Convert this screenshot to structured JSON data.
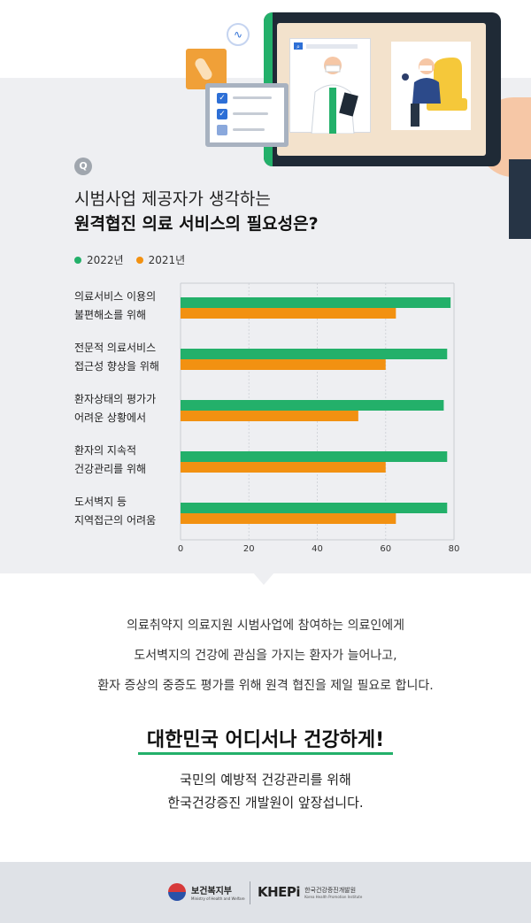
{
  "header": {
    "badge": "Q",
    "title_line1": "시범사업 제공자가 생각하는",
    "title_line2": "원격협진 의료 서비스의 필요성은?"
  },
  "illustration": {
    "check_mark": "✓",
    "pulse_icon": "∿",
    "search_icon": "⌕"
  },
  "chart_data": {
    "type": "bar",
    "orientation": "horizontal",
    "categories": [
      [
        "의료서비스 이용의",
        "불편해소를 위해"
      ],
      [
        "전문적 의료서비스",
        "접근성 향상을 위해"
      ],
      [
        "환자상태의 평가가",
        "어려운 상황에서"
      ],
      [
        "환자의 지속적",
        "건강관리를 위해"
      ],
      [
        "도서벽지 등",
        "지역접근의 어려움"
      ]
    ],
    "series": [
      {
        "name": "2022년",
        "color": "#23b06a",
        "values": [
          79,
          78,
          77,
          78,
          78
        ]
      },
      {
        "name": "2021년",
        "color": "#f29111",
        "values": [
          63,
          60,
          52,
          60,
          63
        ]
      }
    ],
    "xlim": [
      0,
      80
    ],
    "xticks": [
      "0",
      "20",
      "40",
      "60",
      "80"
    ],
    "grid": true,
    "legend_position": "top-left"
  },
  "body": {
    "lines": [
      "의료취약지 의료지원 시범사업에 참여하는 의료인에게",
      "도서벽지의 건강에 관심을 가지는 환자가 늘어나고,",
      "환자 증상의 중증도 평가를 위해 원격 협진을 제일 필요로 합니다."
    ],
    "slogan": "대한민국 어디서나 건강하게!",
    "sub_lines": [
      "국민의 예방적 건강관리를 위해",
      "한국건강증진 개발원이 앞장섭니다."
    ]
  },
  "footer": {
    "ministry_kr": "보건복지부",
    "ministry_en": "Ministry of Health and Welfare",
    "khepi": "KHEPi",
    "institute_kr": "한국건강증진개발원",
    "institute_en": "Korea Health Promotion Institute"
  },
  "colors": {
    "green": "#23b06a",
    "orange": "#f29111",
    "band": "#eeeff2",
    "footer": "#dfe2e7"
  }
}
